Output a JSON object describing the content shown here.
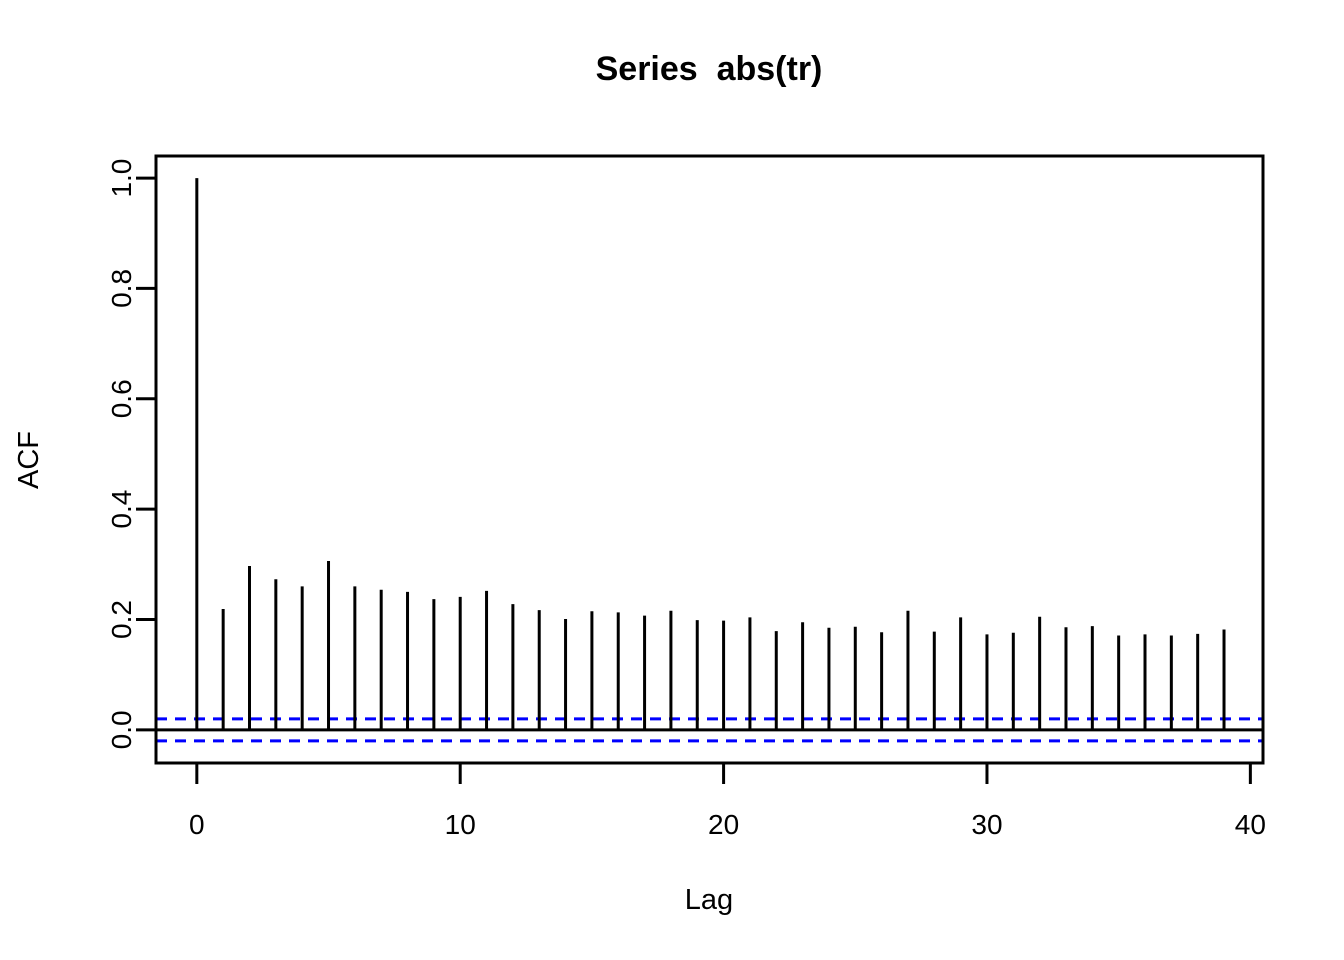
{
  "figure": {
    "title": "Series  abs(tr)",
    "xlabel": "Lag",
    "ylabel": "ACF"
  },
  "chart_data": {
    "type": "bar",
    "subtype": "acf-correlogram-sticks",
    "title": "Series  abs(tr)",
    "xlabel": "Lag",
    "ylabel": "ACF",
    "x": [
      0,
      1,
      2,
      3,
      4,
      5,
      6,
      7,
      8,
      9,
      10,
      11,
      12,
      13,
      14,
      15,
      16,
      17,
      18,
      19,
      20,
      21,
      22,
      23,
      24,
      25,
      26,
      27,
      28,
      29,
      30,
      31,
      32,
      33,
      34,
      35,
      36,
      37,
      38,
      39
    ],
    "values": [
      1.0,
      0.219,
      0.297,
      0.273,
      0.26,
      0.306,
      0.26,
      0.254,
      0.25,
      0.237,
      0.241,
      0.252,
      0.228,
      0.217,
      0.201,
      0.215,
      0.213,
      0.207,
      0.216,
      0.199,
      0.198,
      0.204,
      0.179,
      0.195,
      0.185,
      0.187,
      0.177,
      0.216,
      0.178,
      0.204,
      0.173,
      0.176,
      0.205,
      0.186,
      0.188,
      0.171,
      0.173,
      0.171,
      0.174,
      0.182
    ],
    "confidence_bounds": {
      "upper": 0.02,
      "lower": -0.02,
      "line_style": "dashed",
      "color": "#0000FF"
    },
    "zero_line": 0,
    "xticks": [
      0,
      10,
      20,
      30,
      40
    ],
    "xtick_labels": [
      "0",
      "10",
      "20",
      "30",
      "40"
    ],
    "yticks": [
      0.0,
      0.2,
      0.4,
      0.6,
      0.8,
      1.0
    ],
    "ytick_labels": [
      "0.0",
      "0.2",
      "0.4",
      "0.6",
      "0.8",
      "1.0"
    ],
    "xlim": [
      -1.55,
      40.48
    ],
    "ylim": [
      -0.06,
      1.04
    ],
    "grid": false,
    "legend_position": "none",
    "bar_color": "#000000",
    "frame_color": "#000000",
    "background": "#FFFFFF"
  }
}
